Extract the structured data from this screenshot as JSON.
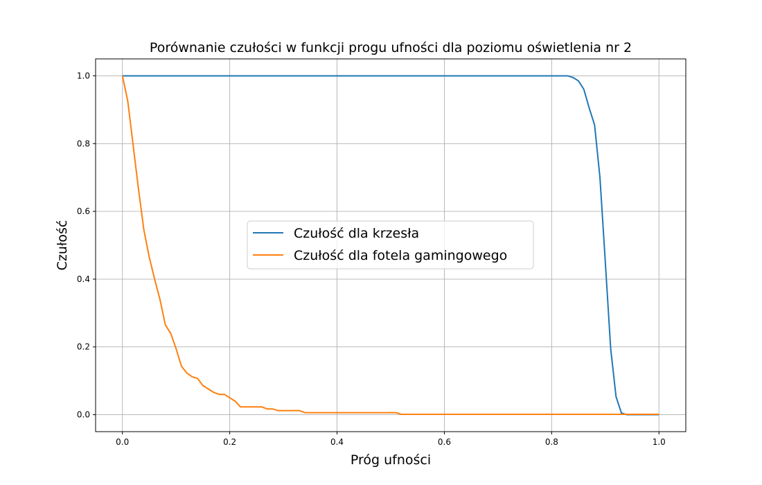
{
  "chart_data": {
    "type": "line",
    "title": "Porównanie czułości w funkcji progu ufności dla poziomu oświetlenia nr 2",
    "xlabel": "Próg ufności",
    "ylabel": "Czułość",
    "xlim": [
      -0.05,
      1.05
    ],
    "ylim": [
      -0.05,
      1.05
    ],
    "xticks": [
      0.0,
      0.2,
      0.4,
      0.6,
      0.8,
      1.0
    ],
    "xtick_labels": [
      "0.0",
      "0.2",
      "0.4",
      "0.6",
      "0.8",
      "1.0"
    ],
    "yticks": [
      0.0,
      0.2,
      0.4,
      0.6,
      0.8,
      1.0
    ],
    "ytick_labels": [
      "0.0",
      "0.2",
      "0.4",
      "0.6",
      "0.8",
      "1.0"
    ],
    "grid": true,
    "legend_position": "center",
    "series": [
      {
        "name": "Czułość dla krzesła",
        "color": "#1f77b4",
        "x": [
          0.0,
          0.1,
          0.2,
          0.3,
          0.4,
          0.5,
          0.6,
          0.7,
          0.8,
          0.83,
          0.84,
          0.85,
          0.86,
          0.87,
          0.88,
          0.89,
          0.9,
          0.91,
          0.92,
          0.93,
          0.94,
          0.95,
          1.0
        ],
        "y": [
          1.0,
          1.0,
          1.0,
          1.0,
          1.0,
          1.0,
          1.0,
          1.0,
          1.0,
          1.0,
          0.995,
          0.985,
          0.96,
          0.905,
          0.855,
          0.7,
          0.45,
          0.195,
          0.053,
          0.005,
          0.0,
          0.0,
          0.0
        ]
      },
      {
        "name": "Czułość dla fotela gamingowego",
        "color": "#ff7f0e",
        "x": [
          0.0,
          0.01,
          0.02,
          0.03,
          0.04,
          0.05,
          0.06,
          0.07,
          0.08,
          0.09,
          0.1,
          0.11,
          0.12,
          0.13,
          0.14,
          0.15,
          0.16,
          0.17,
          0.18,
          0.19,
          0.2,
          0.21,
          0.22,
          0.23,
          0.24,
          0.25,
          0.26,
          0.27,
          0.28,
          0.29,
          0.3,
          0.31,
          0.32,
          0.33,
          0.34,
          0.35,
          0.4,
          0.45,
          0.5,
          0.51,
          0.52,
          0.6,
          0.7,
          0.8,
          0.9,
          1.0
        ],
        "y": [
          1.0,
          0.925,
          0.795,
          0.665,
          0.545,
          0.465,
          0.4,
          0.34,
          0.265,
          0.24,
          0.195,
          0.143,
          0.123,
          0.112,
          0.107,
          0.086,
          0.076,
          0.066,
          0.06,
          0.06,
          0.05,
          0.04,
          0.023,
          0.023,
          0.023,
          0.023,
          0.023,
          0.017,
          0.017,
          0.012,
          0.012,
          0.012,
          0.012,
          0.012,
          0.006,
          0.006,
          0.006,
          0.006,
          0.006,
          0.006,
          0.001,
          0.001,
          0.001,
          0.001,
          0.001,
          0.001
        ]
      }
    ]
  }
}
